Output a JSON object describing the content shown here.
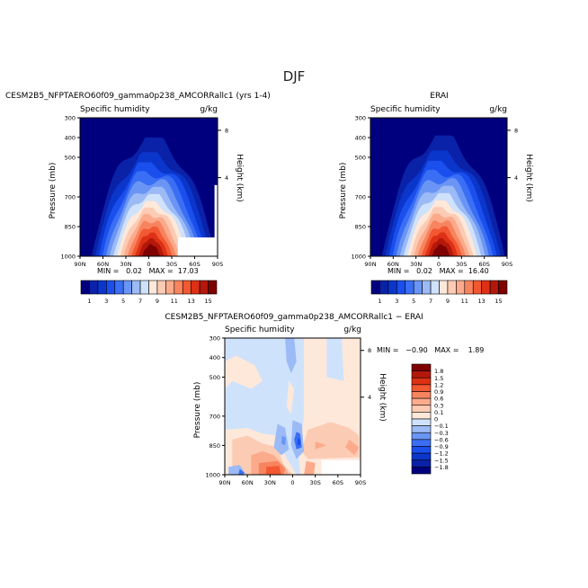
{
  "figure_title": "DJF",
  "chart_data": [
    {
      "type": "contour",
      "title": "CESM2B5_NFPTAERO60f09_gamma0p238_AMCORRallc1 (yrs 1-4)",
      "left_label": "Specific humidity",
      "right_label": "g/kg",
      "ylabel": "Pressure (mb)",
      "ylabel_right": "Height (km)",
      "x_ticks": [
        "90N",
        "60N",
        "30N",
        "0",
        "30S",
        "60S",
        "90S"
      ],
      "x_values": [
        90,
        60,
        30,
        0,
        -30,
        -60,
        -90
      ],
      "y_ticks": [
        300,
        400,
        500,
        700,
        850,
        1000
      ],
      "y_right_ticks": [
        8,
        4
      ],
      "ylim": [
        1000,
        300
      ],
      "min_label": "MIN =",
      "min": "0.02",
      "max_label": "MAX =",
      "max": "17.03",
      "levels": [
        1,
        2,
        3,
        4,
        5,
        6,
        7,
        8,
        9,
        10,
        11,
        12,
        13,
        14,
        15
      ],
      "colorbar_labels": [
        "1",
        "3",
        "5",
        "7",
        "9",
        "11",
        "13",
        "15"
      ],
      "peak_lat": -3,
      "outer_top_pressure": 400
    },
    {
      "type": "contour",
      "title": "ERAI",
      "left_label": "Specific humidity",
      "right_label": "g/kg",
      "ylabel": "Pressure (mb)",
      "ylabel_right": "Height (km)",
      "x_ticks": [
        "90N",
        "60N",
        "30N",
        "0",
        "30S",
        "60S",
        "90S"
      ],
      "x_values": [
        90,
        60,
        30,
        0,
        -30,
        -60,
        -90
      ],
      "y_ticks": [
        300,
        400,
        500,
        700,
        850,
        1000
      ],
      "y_right_ticks": [
        8,
        4
      ],
      "ylim": [
        1000,
        300
      ],
      "min_label": "MIN =",
      "min": "0.02",
      "max_label": "MAX =",
      "max": "16.40",
      "levels": [
        1,
        2,
        3,
        4,
        5,
        6,
        7,
        8,
        9,
        10,
        11,
        12,
        13,
        14,
        15
      ],
      "colorbar_labels": [
        "1",
        "3",
        "5",
        "7",
        "9",
        "11",
        "13",
        "15"
      ],
      "peak_lat": -3,
      "outer_top_pressure": 390
    },
    {
      "type": "contour",
      "title": "CESM2B5_NFPTAERO60f09_gamma0p238_AMCORRallc1 − ERAI",
      "left_label": "Specific humidity",
      "right_label": "g/kg",
      "ylabel": "Pressure (mb)",
      "ylabel_right": "Height (km)",
      "x_ticks": [
        "90N",
        "60N",
        "30N",
        "0",
        "30S",
        "60S",
        "90S"
      ],
      "x_values": [
        90,
        60,
        30,
        0,
        -30,
        -60,
        -90
      ],
      "y_ticks": [
        300,
        400,
        500,
        700,
        850,
        1000
      ],
      "y_right_ticks": [
        8,
        4
      ],
      "ylim": [
        1000,
        300
      ],
      "min_label": "MIN =",
      "min": "−0.90",
      "max_label": "MAX =",
      "max": "1.89",
      "levels": [
        -1.8,
        -1.5,
        -1.2,
        -0.9,
        -0.6,
        -0.3,
        -0.1,
        0,
        0.1,
        0.3,
        0.6,
        0.9,
        1.2,
        1.5,
        1.8
      ],
      "colorbar_labels": [
        "1.8",
        "1.5",
        "1.2",
        "0.9",
        "0.6",
        "0.3",
        "0.1",
        "0",
        "−0.1",
        "−0.3",
        "−0.6",
        "−0.9",
        "−1.2",
        "−1.5",
        "−1.8"
      ]
    }
  ],
  "colors": [
    "#00007f",
    "#0a22a8",
    "#0a36cc",
    "#1a4fee",
    "#3a6ef4",
    "#6a95f4",
    "#9bbaf6",
    "#cfe2fb",
    "#fde8da",
    "#fccbb3",
    "#fbab8b",
    "#f8845f",
    "#f25832",
    "#dd3014",
    "#b4180a",
    "#7f0000"
  ]
}
